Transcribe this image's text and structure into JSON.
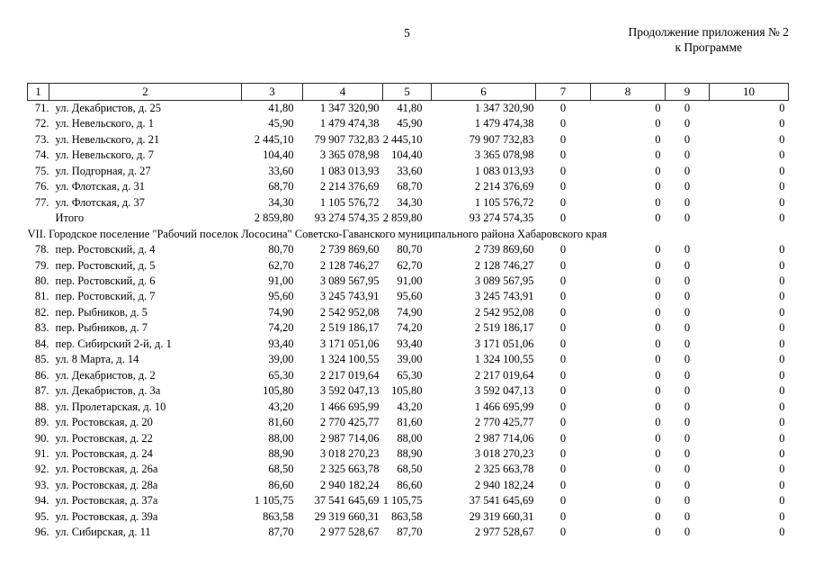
{
  "page": {
    "number": "5",
    "continuation": [
      "Продолжение приложения № 2",
      "к Программе"
    ]
  },
  "table": {
    "column_headers": [
      "1",
      "2",
      "3",
      "4",
      "5",
      "6",
      "7",
      "8",
      "9",
      "10"
    ],
    "rows": [
      {
        "type": "data",
        "num": "71.",
        "address": "ул. Декабристов, д. 25",
        "values": [
          "41,80",
          "1 347 320,90",
          "41,80",
          "1 347 320,90",
          "0",
          "0",
          "0",
          "0"
        ]
      },
      {
        "type": "data",
        "num": "72.",
        "address": "ул. Невельского, д. 1",
        "values": [
          "45,90",
          "1 479 474,38",
          "45,90",
          "1 479 474,38",
          "0",
          "0",
          "0",
          "0"
        ]
      },
      {
        "type": "data",
        "num": "73.",
        "address": "ул. Невельского, д. 21",
        "values": [
          "2 445,10",
          "79 907 732,83",
          "2 445,10",
          "79 907 732,83",
          "0",
          "0",
          "0",
          "0"
        ]
      },
      {
        "type": "data",
        "num": "74.",
        "address": "ул. Невельского, д. 7",
        "values": [
          "104,40",
          "3 365 078,98",
          "104,40",
          "3 365 078,98",
          "0",
          "0",
          "0",
          "0"
        ]
      },
      {
        "type": "data",
        "num": "75.",
        "address": "ул. Подгорная, д. 27",
        "values": [
          "33,60",
          "1 083 013,93",
          "33,60",
          "1 083 013,93",
          "0",
          "0",
          "0",
          "0"
        ]
      },
      {
        "type": "data",
        "num": "76.",
        "address": "ул. Флотская, д. 31",
        "values": [
          "68,70",
          "2 214 376,69",
          "68,70",
          "2 214 376,69",
          "0",
          "0",
          "0",
          "0"
        ]
      },
      {
        "type": "data",
        "num": "77.",
        "address": "ул. Флотская, д. 37",
        "values": [
          "34,30",
          "1 105 576,72",
          "34,30",
          "1 105 576,72",
          "0",
          "0",
          "0",
          "0"
        ]
      },
      {
        "type": "total",
        "label": "Итого",
        "values": [
          "2 859,80",
          "93 274 574,35",
          "2 859,80",
          "93 274 574,35",
          "0",
          "0",
          "0",
          "0"
        ]
      },
      {
        "type": "section",
        "label": "VII. Городское поселение \"Рабочий поселок Лососина\" Советско-Гаванского муниципального района Хабаровского края"
      },
      {
        "type": "data",
        "num": "78.",
        "address": "пер. Ростовский, д. 4",
        "values": [
          "80,70",
          "2 739 869,60",
          "80,70",
          "2 739 869,60",
          "0",
          "0",
          "0",
          "0"
        ]
      },
      {
        "type": "data",
        "num": "79.",
        "address": "пер. Ростовский, д. 5",
        "values": [
          "62,70",
          "2 128 746,27",
          "62,70",
          "2 128 746,27",
          "0",
          "0",
          "0",
          "0"
        ]
      },
      {
        "type": "data",
        "num": "80.",
        "address": "пер. Ростовский, д. 6",
        "values": [
          "91,00",
          "3 089 567,95",
          "91,00",
          "3 089 567,95",
          "0",
          "0",
          "0",
          "0"
        ]
      },
      {
        "type": "data",
        "num": "81.",
        "address": "пер. Ростовский, д. 7",
        "values": [
          "95,60",
          "3 245 743,91",
          "95,60",
          "3 245 743,91",
          "0",
          "0",
          "0",
          "0"
        ]
      },
      {
        "type": "data",
        "num": "82.",
        "address": "пер. Рыбников, д. 5",
        "values": [
          "74,90",
          "2 542 952,08",
          "74,90",
          "2 542 952,08",
          "0",
          "0",
          "0",
          "0"
        ]
      },
      {
        "type": "data",
        "num": "83.",
        "address": "пер. Рыбников, д. 7",
        "values": [
          "74,20",
          "2 519 186,17",
          "74,20",
          "2 519 186,17",
          "0",
          "0",
          "0",
          "0"
        ]
      },
      {
        "type": "data",
        "num": "84.",
        "address": "пер. Сибирский 2-й, д. 1",
        "values": [
          "93,40",
          "3 171 051,06",
          "93,40",
          "3 171 051,06",
          "0",
          "0",
          "0",
          "0"
        ]
      },
      {
        "type": "data",
        "num": "85.",
        "address": "ул. 8 Марта, д. 14",
        "values": [
          "39,00",
          "1 324 100,55",
          "39,00",
          "1 324 100,55",
          "0",
          "0",
          "0",
          "0"
        ]
      },
      {
        "type": "data",
        "num": "86.",
        "address": "ул. Декабристов, д. 2",
        "values": [
          "65,30",
          "2 217 019,64",
          "65,30",
          "2 217 019,64",
          "0",
          "0",
          "0",
          "0"
        ]
      },
      {
        "type": "data",
        "num": "87.",
        "address": "ул. Декабристов, д. 3а",
        "values": [
          "105,80",
          "3 592 047,13",
          "105,80",
          "3 592 047,13",
          "0",
          "0",
          "0",
          "0"
        ]
      },
      {
        "type": "data",
        "num": "88.",
        "address": "ул. Пролетарская, д. 10",
        "values": [
          "43,20",
          "1 466 695,99",
          "43,20",
          "1 466 695,99",
          "0",
          "0",
          "0",
          "0"
        ]
      },
      {
        "type": "data",
        "num": "89.",
        "address": "ул. Ростовская, д. 20",
        "values": [
          "81,60",
          "2 770 425,77",
          "81,60",
          "2 770 425,77",
          "0",
          "0",
          "0",
          "0"
        ]
      },
      {
        "type": "data",
        "num": "90.",
        "address": "ул. Ростовская, д. 22",
        "values": [
          "88,00",
          "2 987 714,06",
          "88,00",
          "2 987 714,06",
          "0",
          "0",
          "0",
          "0"
        ]
      },
      {
        "type": "data",
        "num": "91.",
        "address": "ул. Ростовская, д. 24",
        "values": [
          "88,90",
          "3 018 270,23",
          "88,90",
          "3 018 270,23",
          "0",
          "0",
          "0",
          "0"
        ]
      },
      {
        "type": "data",
        "num": "92.",
        "address": "ул. Ростовская, д. 26а",
        "values": [
          "68,50",
          "2 325 663,78",
          "68,50",
          "2 325 663,78",
          "0",
          "0",
          "0",
          "0"
        ]
      },
      {
        "type": "data",
        "num": "93.",
        "address": "ул. Ростовская, д. 28а",
        "values": [
          "86,60",
          "2 940 182,24",
          "86,60",
          "2 940 182,24",
          "0",
          "0",
          "0",
          "0"
        ]
      },
      {
        "type": "data",
        "num": "94.",
        "address": "ул. Ростовская, д. 37а",
        "values": [
          "1 105,75",
          "37 541 645,69",
          "1 105,75",
          "37 541 645,69",
          "0",
          "0",
          "0",
          "0"
        ]
      },
      {
        "type": "data",
        "num": "95.",
        "address": "ул. Ростовская, д. 39а",
        "values": [
          "863,58",
          "29 319 660,31",
          "863,58",
          "29 319 660,31",
          "0",
          "0",
          "0",
          "0"
        ]
      },
      {
        "type": "data",
        "num": "96.",
        "address": "ул. Сибирская, д. 11",
        "values": [
          "87,70",
          "2 977 528,67",
          "87,70",
          "2 977 528,67",
          "0",
          "0",
          "0",
          "0"
        ]
      }
    ]
  }
}
